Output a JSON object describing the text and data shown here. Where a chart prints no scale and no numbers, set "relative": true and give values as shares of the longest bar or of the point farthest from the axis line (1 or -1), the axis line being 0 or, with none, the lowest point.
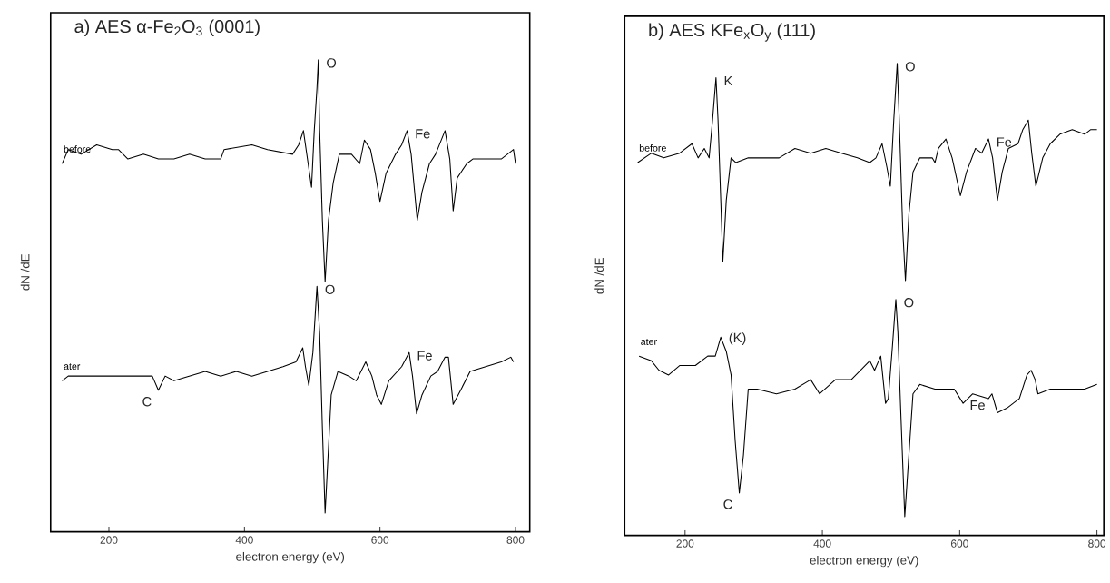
{
  "chart_data": [
    {
      "type": "line",
      "title": "a) AES α-Fe$_{2}$O$_{3}$ (0001)",
      "xlabel": "electron energy (eV)",
      "ylabel": "dN /dE",
      "relative": true,
      "tick_labels": "x",
      "xlim": [
        114,
        821
      ],
      "xticks": [
        200,
        400,
        600,
        800
      ],
      "series": [
        {
          "name": "before",
          "color": "#000000",
          "x": [
            131,
            140,
            159,
            182,
            205,
            214,
            228,
            251,
            273,
            296,
            319,
            342,
            365,
            370,
            411,
            434,
            471,
            480,
            487,
            494,
            499,
            503,
            507,
            509,
            511,
            515,
            519,
            524,
            531,
            540,
            558,
            570,
            577,
            586,
            593,
            600,
            609,
            623,
            632,
            640,
            646,
            655,
            662,
            673,
            682,
            696,
            703,
            708,
            714,
            728,
            737,
            756,
            779,
            797,
            800
          ],
          "values": [
            0.78,
            0.81,
            0.8,
            0.82,
            0.81,
            0.81,
            0.79,
            0.8,
            0.79,
            0.79,
            0.8,
            0.79,
            0.79,
            0.81,
            0.82,
            0.81,
            0.8,
            0.82,
            0.85,
            0.78,
            0.73,
            0.85,
            0.94,
            1.0,
            0.85,
            0.66,
            0.53,
            0.66,
            0.74,
            0.8,
            0.8,
            0.78,
            0.83,
            0.81,
            0.76,
            0.7,
            0.76,
            0.8,
            0.82,
            0.85,
            0.8,
            0.66,
            0.72,
            0.78,
            0.8,
            0.85,
            0.79,
            0.68,
            0.75,
            0.78,
            0.79,
            0.79,
            0.79,
            0.81,
            0.78
          ]
        },
        {
          "name": "ater",
          "color": "#000000",
          "x": [
            131,
            140,
            159,
            182,
            205,
            228,
            251,
            264,
            273,
            283,
            296,
            319,
            342,
            365,
            388,
            411,
            434,
            457,
            476,
            486,
            490,
            495,
            501,
            507,
            511,
            515,
            519,
            523,
            528,
            538,
            554,
            565,
            579,
            588,
            595,
            602,
            613,
            632,
            643,
            648,
            654,
            662,
            675,
            685,
            696,
            701,
            708,
            719,
            733,
            756,
            779,
            793,
            797
          ],
          "values": [
            0.32,
            0.33,
            0.33,
            0.33,
            0.33,
            0.33,
            0.33,
            0.33,
            0.3,
            0.33,
            0.32,
            0.33,
            0.34,
            0.33,
            0.34,
            0.33,
            0.34,
            0.35,
            0.36,
            0.39,
            0.35,
            0.31,
            0.38,
            0.52,
            0.42,
            0.22,
            0.04,
            0.15,
            0.29,
            0.34,
            0.33,
            0.32,
            0.36,
            0.33,
            0.29,
            0.27,
            0.32,
            0.35,
            0.38,
            0.33,
            0.25,
            0.29,
            0.33,
            0.34,
            0.37,
            0.37,
            0.27,
            0.3,
            0.34,
            0.35,
            0.36,
            0.37,
            0.36
          ]
        }
      ],
      "annotations": [
        {
          "text": "O",
          "x": 509,
          "y": 1.0
        },
        {
          "text": "Fe",
          "x": 640,
          "y": 0.85
        },
        {
          "text": "O",
          "x": 507,
          "y": 0.52
        },
        {
          "text": "Fe",
          "x": 643,
          "y": 0.38
        },
        {
          "text": "C",
          "x": 273,
          "y": 0.3
        }
      ]
    },
    {
      "type": "line",
      "title": "b) AES KFe$_{x}$O$_{y}$ (111)",
      "xlabel": "electron energy (eV)",
      "ylabel": "dN /dE",
      "relative": true,
      "tick_labels": "x",
      "xlim": [
        112,
        810
      ],
      "xticks": [
        200,
        400,
        600,
        800
      ],
      "series": [
        {
          "name": "before",
          "color": "#000000",
          "x": [
            131,
            151,
            169,
            192,
            210,
            219,
            228,
            235,
            240,
            245,
            248,
            252,
            255,
            260,
            267,
            274,
            292,
            314,
            337,
            360,
            383,
            405,
            428,
            451,
            469,
            478,
            487,
            494,
            499,
            504,
            509,
            512,
            517,
            521,
            526,
            532,
            542,
            560,
            564,
            569,
            580,
            589,
            601,
            610,
            623,
            632,
            642,
            648,
            655,
            662,
            671,
            685,
            692,
            700,
            705,
            711,
            721,
            732,
            746,
            764,
            782,
            791,
            800
          ],
          "values": [
            0.79,
            0.81,
            0.8,
            0.81,
            0.83,
            0.8,
            0.82,
            0.8,
            0.88,
            0.97,
            0.88,
            0.71,
            0.58,
            0.71,
            0.8,
            0.79,
            0.8,
            0.8,
            0.8,
            0.82,
            0.81,
            0.82,
            0.81,
            0.8,
            0.79,
            0.8,
            0.83,
            0.78,
            0.74,
            0.88,
            1.0,
            0.88,
            0.65,
            0.54,
            0.68,
            0.77,
            0.8,
            0.8,
            0.79,
            0.82,
            0.84,
            0.8,
            0.72,
            0.77,
            0.82,
            0.81,
            0.84,
            0.8,
            0.71,
            0.77,
            0.82,
            0.83,
            0.86,
            0.88,
            0.81,
            0.74,
            0.8,
            0.83,
            0.85,
            0.86,
            0.85,
            0.86,
            0.86
          ]
        },
        {
          "name": "ater",
          "color": "#000000",
          "x": [
            133,
            151,
            162,
            176,
            192,
            215,
            233,
            244,
            252,
            260,
            267,
            273,
            279,
            285,
            292,
            305,
            333,
            360,
            383,
            396,
            419,
            442,
            469,
            476,
            485,
            492,
            496,
            502,
            507,
            510,
            514,
            520,
            526,
            532,
            542,
            564,
            592,
            605,
            619,
            642,
            647,
            655,
            669,
            687,
            698,
            704,
            710,
            714,
            732,
            760,
            782,
            800
          ],
          "values": [
            0.38,
            0.37,
            0.35,
            0.34,
            0.36,
            0.36,
            0.38,
            0.38,
            0.42,
            0.39,
            0.34,
            0.2,
            0.09,
            0.17,
            0.31,
            0.31,
            0.3,
            0.31,
            0.33,
            0.3,
            0.33,
            0.33,
            0.37,
            0.35,
            0.38,
            0.28,
            0.29,
            0.4,
            0.5,
            0.43,
            0.27,
            0.04,
            0.17,
            0.3,
            0.32,
            0.31,
            0.31,
            0.28,
            0.3,
            0.29,
            0.3,
            0.26,
            0.27,
            0.29,
            0.34,
            0.35,
            0.33,
            0.3,
            0.31,
            0.31,
            0.31,
            0.32
          ]
        }
      ],
      "annotations": [
        {
          "text": "K",
          "x": 245,
          "y": 0.97
        },
        {
          "text": "O",
          "x": 509,
          "y": 1.0
        },
        {
          "text": "Fe",
          "x": 642,
          "y": 0.84
        },
        {
          "text": "(K)",
          "x": 252,
          "y": 0.42
        },
        {
          "text": "O",
          "x": 507,
          "y": 0.5
        },
        {
          "text": "Fe",
          "x": 647,
          "y": 0.3
        },
        {
          "text": "C",
          "x": 279,
          "y": 0.09
        }
      ]
    }
  ]
}
